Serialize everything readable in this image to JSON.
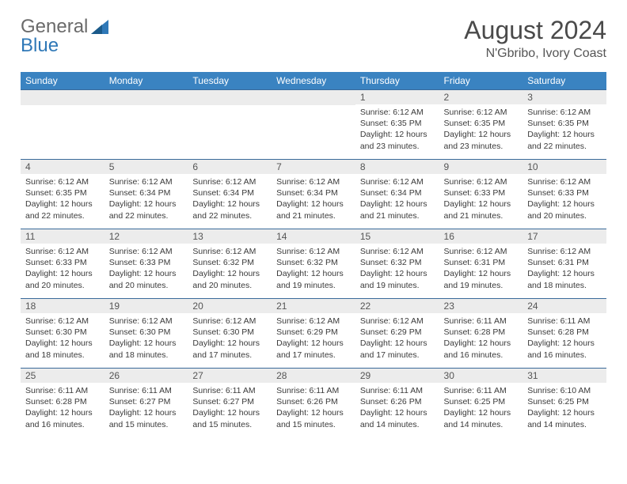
{
  "logo": {
    "general": "General",
    "blue": "Blue"
  },
  "title": "August 2024",
  "location": "N'Gbribo, Ivory Coast",
  "colors": {
    "header_bg": "#3a83c1",
    "header_text": "#ffffff",
    "daynum_bg": "#ececec",
    "border": "#3a6a9a",
    "logo_blue": "#2f78b7",
    "logo_gray": "#6a6a6a"
  },
  "daynames": [
    "Sunday",
    "Monday",
    "Tuesday",
    "Wednesday",
    "Thursday",
    "Friday",
    "Saturday"
  ],
  "weeks": [
    [
      null,
      null,
      null,
      null,
      {
        "n": "1",
        "sr": "6:12 AM",
        "ss": "6:35 PM",
        "dl": "12 hours and 23 minutes."
      },
      {
        "n": "2",
        "sr": "6:12 AM",
        "ss": "6:35 PM",
        "dl": "12 hours and 23 minutes."
      },
      {
        "n": "3",
        "sr": "6:12 AM",
        "ss": "6:35 PM",
        "dl": "12 hours and 22 minutes."
      }
    ],
    [
      {
        "n": "4",
        "sr": "6:12 AM",
        "ss": "6:35 PM",
        "dl": "12 hours and 22 minutes."
      },
      {
        "n": "5",
        "sr": "6:12 AM",
        "ss": "6:34 PM",
        "dl": "12 hours and 22 minutes."
      },
      {
        "n": "6",
        "sr": "6:12 AM",
        "ss": "6:34 PM",
        "dl": "12 hours and 22 minutes."
      },
      {
        "n": "7",
        "sr": "6:12 AM",
        "ss": "6:34 PM",
        "dl": "12 hours and 21 minutes."
      },
      {
        "n": "8",
        "sr": "6:12 AM",
        "ss": "6:34 PM",
        "dl": "12 hours and 21 minutes."
      },
      {
        "n": "9",
        "sr": "6:12 AM",
        "ss": "6:33 PM",
        "dl": "12 hours and 21 minutes."
      },
      {
        "n": "10",
        "sr": "6:12 AM",
        "ss": "6:33 PM",
        "dl": "12 hours and 20 minutes."
      }
    ],
    [
      {
        "n": "11",
        "sr": "6:12 AM",
        "ss": "6:33 PM",
        "dl": "12 hours and 20 minutes."
      },
      {
        "n": "12",
        "sr": "6:12 AM",
        "ss": "6:33 PM",
        "dl": "12 hours and 20 minutes."
      },
      {
        "n": "13",
        "sr": "6:12 AM",
        "ss": "6:32 PM",
        "dl": "12 hours and 20 minutes."
      },
      {
        "n": "14",
        "sr": "6:12 AM",
        "ss": "6:32 PM",
        "dl": "12 hours and 19 minutes."
      },
      {
        "n": "15",
        "sr": "6:12 AM",
        "ss": "6:32 PM",
        "dl": "12 hours and 19 minutes."
      },
      {
        "n": "16",
        "sr": "6:12 AM",
        "ss": "6:31 PM",
        "dl": "12 hours and 19 minutes."
      },
      {
        "n": "17",
        "sr": "6:12 AM",
        "ss": "6:31 PM",
        "dl": "12 hours and 18 minutes."
      }
    ],
    [
      {
        "n": "18",
        "sr": "6:12 AM",
        "ss": "6:30 PM",
        "dl": "12 hours and 18 minutes."
      },
      {
        "n": "19",
        "sr": "6:12 AM",
        "ss": "6:30 PM",
        "dl": "12 hours and 18 minutes."
      },
      {
        "n": "20",
        "sr": "6:12 AM",
        "ss": "6:30 PM",
        "dl": "12 hours and 17 minutes."
      },
      {
        "n": "21",
        "sr": "6:12 AM",
        "ss": "6:29 PM",
        "dl": "12 hours and 17 minutes."
      },
      {
        "n": "22",
        "sr": "6:12 AM",
        "ss": "6:29 PM",
        "dl": "12 hours and 17 minutes."
      },
      {
        "n": "23",
        "sr": "6:11 AM",
        "ss": "6:28 PM",
        "dl": "12 hours and 16 minutes."
      },
      {
        "n": "24",
        "sr": "6:11 AM",
        "ss": "6:28 PM",
        "dl": "12 hours and 16 minutes."
      }
    ],
    [
      {
        "n": "25",
        "sr": "6:11 AM",
        "ss": "6:28 PM",
        "dl": "12 hours and 16 minutes."
      },
      {
        "n": "26",
        "sr": "6:11 AM",
        "ss": "6:27 PM",
        "dl": "12 hours and 15 minutes."
      },
      {
        "n": "27",
        "sr": "6:11 AM",
        "ss": "6:27 PM",
        "dl": "12 hours and 15 minutes."
      },
      {
        "n": "28",
        "sr": "6:11 AM",
        "ss": "6:26 PM",
        "dl": "12 hours and 15 minutes."
      },
      {
        "n": "29",
        "sr": "6:11 AM",
        "ss": "6:26 PM",
        "dl": "12 hours and 14 minutes."
      },
      {
        "n": "30",
        "sr": "6:11 AM",
        "ss": "6:25 PM",
        "dl": "12 hours and 14 minutes."
      },
      {
        "n": "31",
        "sr": "6:10 AM",
        "ss": "6:25 PM",
        "dl": "12 hours and 14 minutes."
      }
    ]
  ],
  "labels": {
    "sunrise": "Sunrise:",
    "sunset": "Sunset:",
    "daylight": "Daylight:"
  }
}
